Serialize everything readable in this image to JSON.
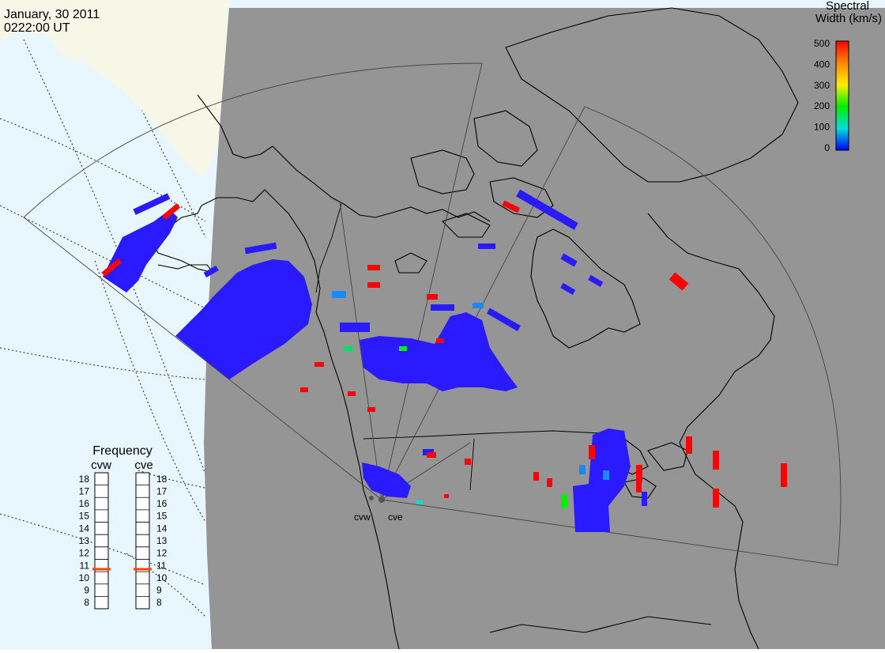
{
  "header": {
    "date": "January, 30 2011",
    "time": "0222:00 UT"
  },
  "colorbar": {
    "title_line1": "Spectral",
    "title_line2": "Width (km/s)",
    "ticks": [
      "500",
      "400",
      "300",
      "200",
      "100",
      "0"
    ],
    "gradient": [
      "#ff0000",
      "#ff8800",
      "#ffee00",
      "#00ee00",
      "#00dddd",
      "#0000ff"
    ]
  },
  "frequency": {
    "title": "Frequency",
    "radars": [
      "cvw",
      "cve"
    ],
    "ticks": [
      "18",
      "17",
      "16",
      "15",
      "14",
      "13",
      "12",
      "11",
      "10",
      "9",
      "8"
    ],
    "cvw_mhz": 10.7,
    "cve_mhz": 10.7,
    "marker_color": "#ff4400"
  },
  "radars": {
    "cvw_label": "cvw",
    "cve_label": "cve"
  },
  "colors": {
    "ocean": "#e8f6ff",
    "land_sunlit": "#f7f7e8",
    "night": "#959595",
    "scatter_low": "#2a1aff"
  }
}
